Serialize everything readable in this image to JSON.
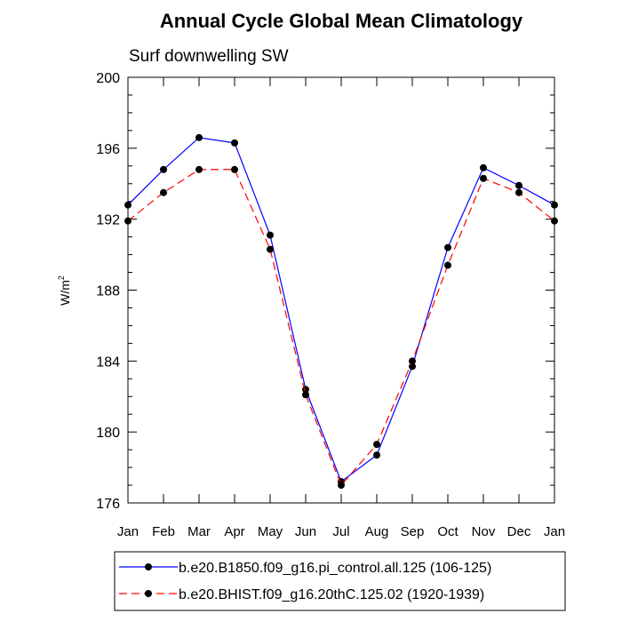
{
  "chart_data": {
    "type": "line",
    "title": "Annual Cycle Global Mean Climatology",
    "subtitle": "Surf downwelling SW",
    "xlabel": "",
    "ylabel": "W/m",
    "ylabel_superscript": "2",
    "categories": [
      "Jan",
      "Feb",
      "Mar",
      "Apr",
      "May",
      "Jun",
      "Jul",
      "Aug",
      "Sep",
      "Oct",
      "Nov",
      "Dec",
      "Jan"
    ],
    "ylim": [
      176,
      200
    ],
    "yticks": [
      176,
      180,
      184,
      188,
      192,
      196,
      200
    ],
    "grid": false,
    "legend_position": "bottom",
    "series": [
      {
        "name": "b.e20.B1850.f09_g16.pi_control.all.125 (106-125)",
        "color": "#0000ff",
        "line_style": "solid",
        "values": [
          192.8,
          194.8,
          196.6,
          196.3,
          191.1,
          182.4,
          177.2,
          178.7,
          183.7,
          190.4,
          194.9,
          193.9,
          192.8
        ]
      },
      {
        "name": "b.e20.BHIST.f09_g16.20thC.125.02 (1920-1939)",
        "color": "#ff0000",
        "line_style": "dashed",
        "values": [
          191.9,
          193.5,
          194.8,
          194.8,
          190.3,
          182.1,
          177.0,
          179.3,
          184.0,
          189.4,
          194.3,
          193.5,
          191.9
        ]
      }
    ]
  }
}
